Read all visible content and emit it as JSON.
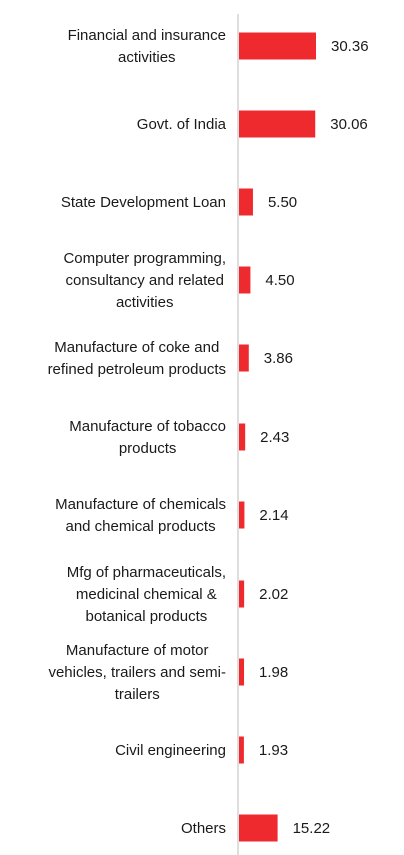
{
  "chart_data": {
    "type": "bar",
    "orientation": "horizontal",
    "title": "",
    "xlabel": "",
    "ylabel": "",
    "grid": false,
    "legend": "none",
    "bar_color": "#EE2A2F",
    "axis_color": "#c8c8c8",
    "categories": [
      [
        "Financial and insurance",
        "activities"
      ],
      [
        "Govt. of India"
      ],
      [
        "State Development Loan"
      ],
      [
        "Computer programming,",
        "consultancy and related",
        "activities"
      ],
      [
        "Manufacture of coke and",
        "refined petroleum products"
      ],
      [
        "Manufacture of tobacco",
        "products"
      ],
      [
        "Manufacture of chemicals",
        "and chemical products"
      ],
      [
        "Mfg of pharmaceuticals,",
        "medicinal chemical &",
        "botanical products"
      ],
      [
        "Manufacture of motor",
        "vehicles, trailers and semi-",
        "trailers"
      ],
      [
        "Civil engineering"
      ],
      [
        "Others"
      ]
    ],
    "values": [
      30.36,
      30.06,
      5.5,
      4.5,
      3.86,
      2.43,
      2.14,
      2.02,
      1.98,
      1.93,
      15.22
    ],
    "value_labels": [
      "30.36",
      "30.06",
      "5.50",
      "4.50",
      "3.86",
      "2.43",
      "2.14",
      "2.02",
      "1.98",
      "1.93",
      "15.22"
    ]
  }
}
